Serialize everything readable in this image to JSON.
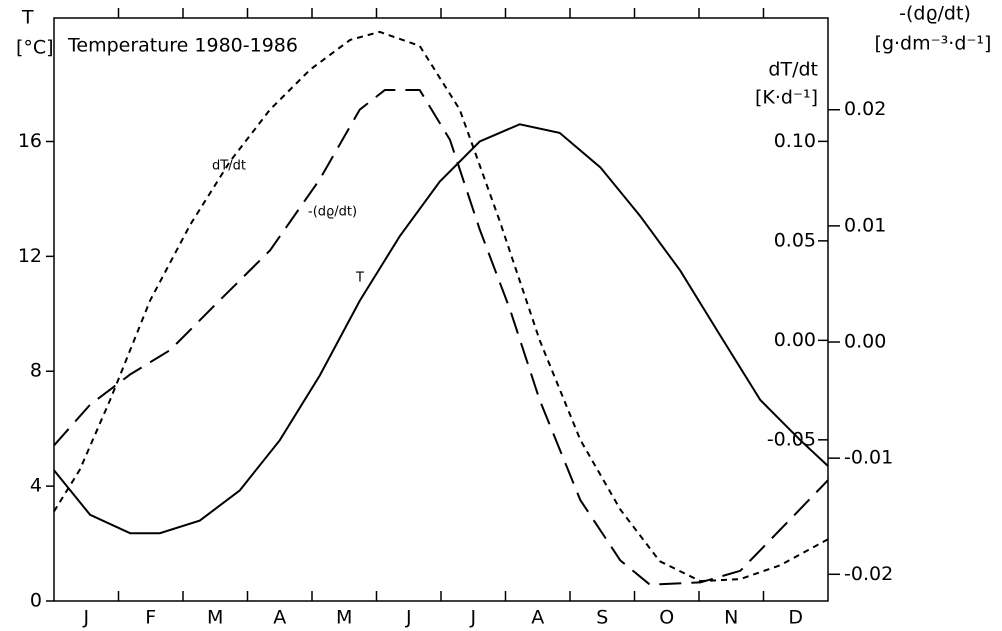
{
  "chart_data": {
    "type": "line",
    "title": "Temperature 1980-1986",
    "y_label": "T",
    "y_unit": "[°C]",
    "y2_label": "dT/dt",
    "y2_unit": "[K·d⁻¹]",
    "y3_label": "-(dϱ/dt)",
    "y3_unit": "[g·dm⁻³·d⁻¹]",
    "annotations": [
      "dT/dt",
      "-(dϱ/dt)",
      "T"
    ],
    "categories": [
      "J",
      "F",
      "M",
      "A",
      "M",
      "J",
      "J",
      "A",
      "S",
      "O",
      "N",
      "D"
    ],
    "xlim": [
      0,
      12
    ],
    "ylim": [
      0,
      20.3
    ],
    "yticks": [
      0,
      4,
      8,
      12,
      16
    ],
    "y2lim": [
      -0.131,
      0.162
    ],
    "y2ticks": [
      {
        "value": 0.1,
        "label": "0.10"
      },
      0.05,
      {
        "value": 0,
        "label": "0.00"
      },
      -0.05
    ],
    "y3lim": [
      -0.0223,
      0.0279
    ],
    "y3ticks": [
      0.02,
      0.01,
      {
        "value": 0,
        "label": "0.00"
      },
      -0.01,
      -0.02
    ],
    "series": [
      {
        "name": "T",
        "color": "#000000",
        "style": "solid",
        "axis": "y",
        "x": [
          0,
          0.56,
          1.18,
          1.64,
          2.26,
          2.88,
          3.5,
          4.12,
          4.74,
          5.36,
          5.98,
          6.6,
          7.22,
          7.84,
          8.47,
          9.09,
          9.71,
          10.33,
          10.95,
          11.57,
          12
        ],
        "values": [
          4.55,
          3.0,
          2.36,
          2.36,
          2.8,
          3.85,
          5.6,
          7.85,
          10.45,
          12.7,
          14.6,
          16.0,
          16.6,
          16.3,
          15.1,
          13.4,
          11.5,
          9.24,
          7.0,
          5.6,
          4.7
        ]
      },
      {
        "name": "dT/dt",
        "color": "#000000",
        "style": "dotted",
        "axis": "y2",
        "x": [
          0,
          0.4,
          0.87,
          1.49,
          2.11,
          2.73,
          3.35,
          3.97,
          4.59,
          5.05,
          5.67,
          6.29,
          6.91,
          7.53,
          8.16,
          8.78,
          9.39,
          10.02,
          10.64,
          11.26,
          12
        ],
        "values": [
          -0.086,
          -0.065,
          -0.03,
          0.02,
          0.058,
          0.09,
          0.116,
          0.136,
          0.151,
          0.155,
          0.148,
          0.116,
          0.06,
          0.0,
          -0.05,
          -0.085,
          -0.111,
          -0.121,
          -0.12,
          -0.113,
          -0.1
        ]
      },
      {
        "name": "-(dϱ/dt)",
        "color": "#000000",
        "style": "dashed",
        "axis": "y3",
        "x": [
          0,
          0.56,
          1.18,
          1.8,
          2.57,
          3.35,
          4.12,
          4.74,
          5.13,
          5.67,
          6.14,
          6.6,
          7.07,
          7.53,
          8.16,
          8.78,
          9.24,
          10.02,
          10.64,
          11.41,
          12
        ],
        "values": [
          -0.0089,
          -0.0054,
          -0.0028,
          -0.0007,
          0.0036,
          0.0079,
          0.014,
          0.02,
          0.0217,
          0.0217,
          0.0174,
          0.0097,
          0.0028,
          -0.005,
          -0.0136,
          -0.0188,
          -0.0209,
          -0.0207,
          -0.0197,
          -0.0153,
          -0.0119
        ]
      }
    ]
  }
}
